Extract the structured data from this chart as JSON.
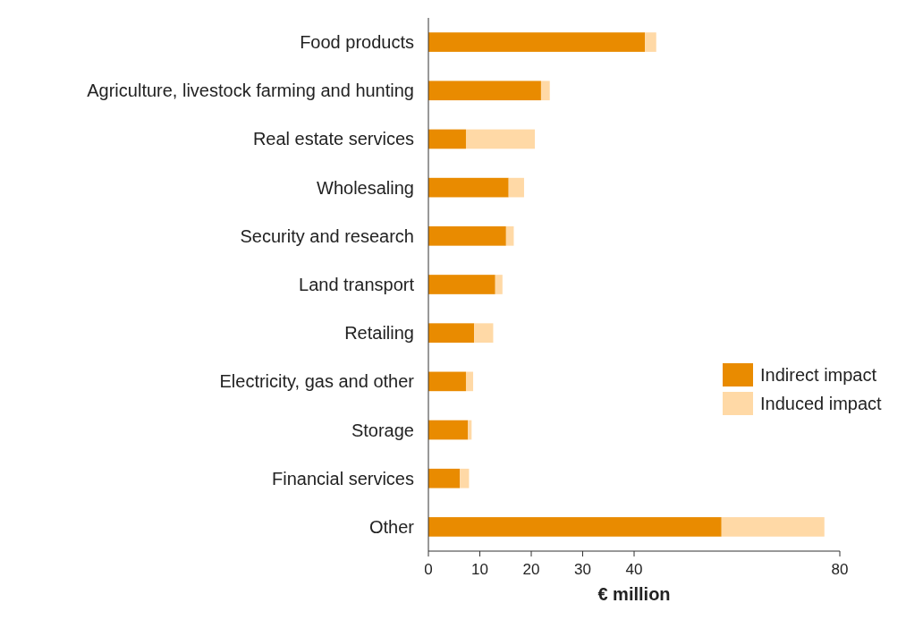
{
  "chart_data": {
    "type": "bar",
    "orientation": "horizontal",
    "stacked": true,
    "xlabel": "€ million",
    "categories": [
      "Food products",
      "Agriculture, livestock farming and hunting",
      "Real estate services",
      "Wholesaling",
      "Security and research",
      "Land transport",
      "Retailing",
      "Electricity, gas and other",
      "Storage",
      "Financial services",
      "Other"
    ],
    "series": [
      {
        "name": "Indirect impact",
        "color": "#e98b00",
        "values": [
          42.1,
          21.9,
          7.3,
          15.6,
          15.1,
          13.0,
          8.9,
          7.3,
          7.7,
          6.1,
          57
        ]
      },
      {
        "name": "Induced impact",
        "color": "#ffd9a6",
        "values": [
          2.2,
          1.7,
          13.4,
          3.0,
          1.5,
          1.4,
          3.7,
          1.4,
          0.7,
          1.8,
          20
        ]
      }
    ],
    "xlim": [
      0,
      80
    ],
    "xticks": [
      0,
      10,
      20,
      30,
      40,
      80
    ],
    "grid": false,
    "legend": "right"
  }
}
